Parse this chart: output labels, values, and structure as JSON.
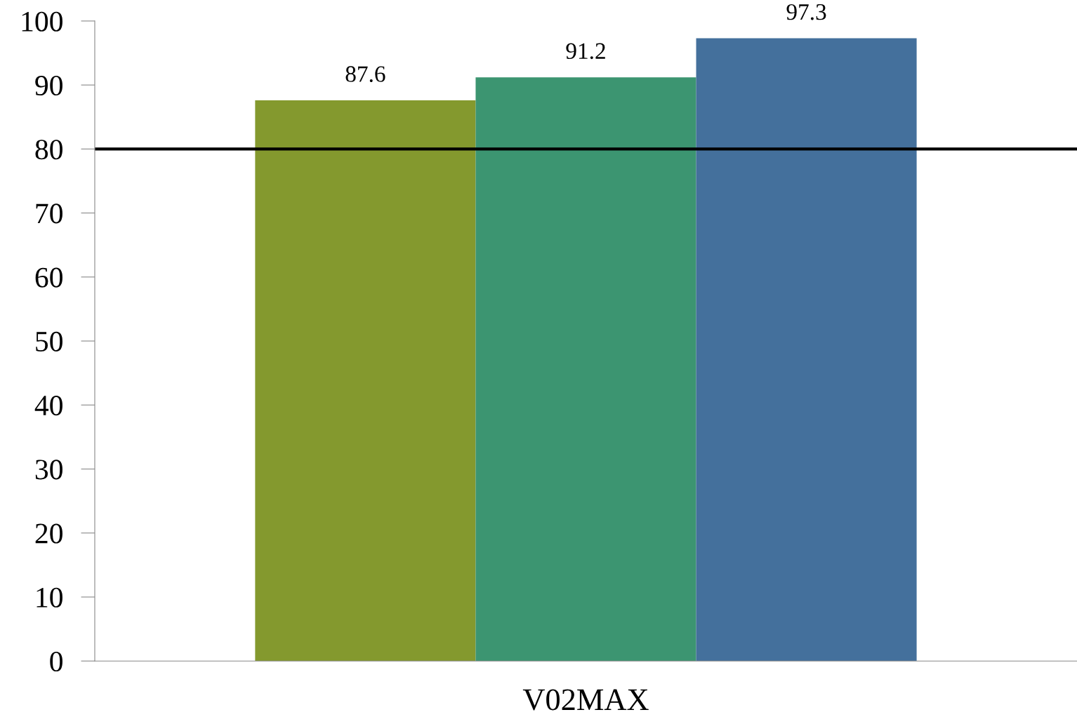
{
  "chart_data": {
    "type": "bar",
    "categories": [
      "V02MAX"
    ],
    "series": [
      {
        "color": "#84992e",
        "values": [
          87.6
        ]
      },
      {
        "color": "#3c9571",
        "values": [
          91.2
        ]
      },
      {
        "color": "#44709c",
        "values": [
          97.3
        ]
      }
    ],
    "ylim": [
      0,
      100
    ],
    "yticks": [
      0,
      10,
      20,
      30,
      40,
      50,
      60,
      70,
      80,
      90,
      100
    ],
    "data_labels": true,
    "grid": false,
    "legend": false,
    "ref_lines": [
      {
        "axis": "y",
        "value": 80,
        "color": "#000000",
        "line_style": "solid"
      }
    ]
  }
}
